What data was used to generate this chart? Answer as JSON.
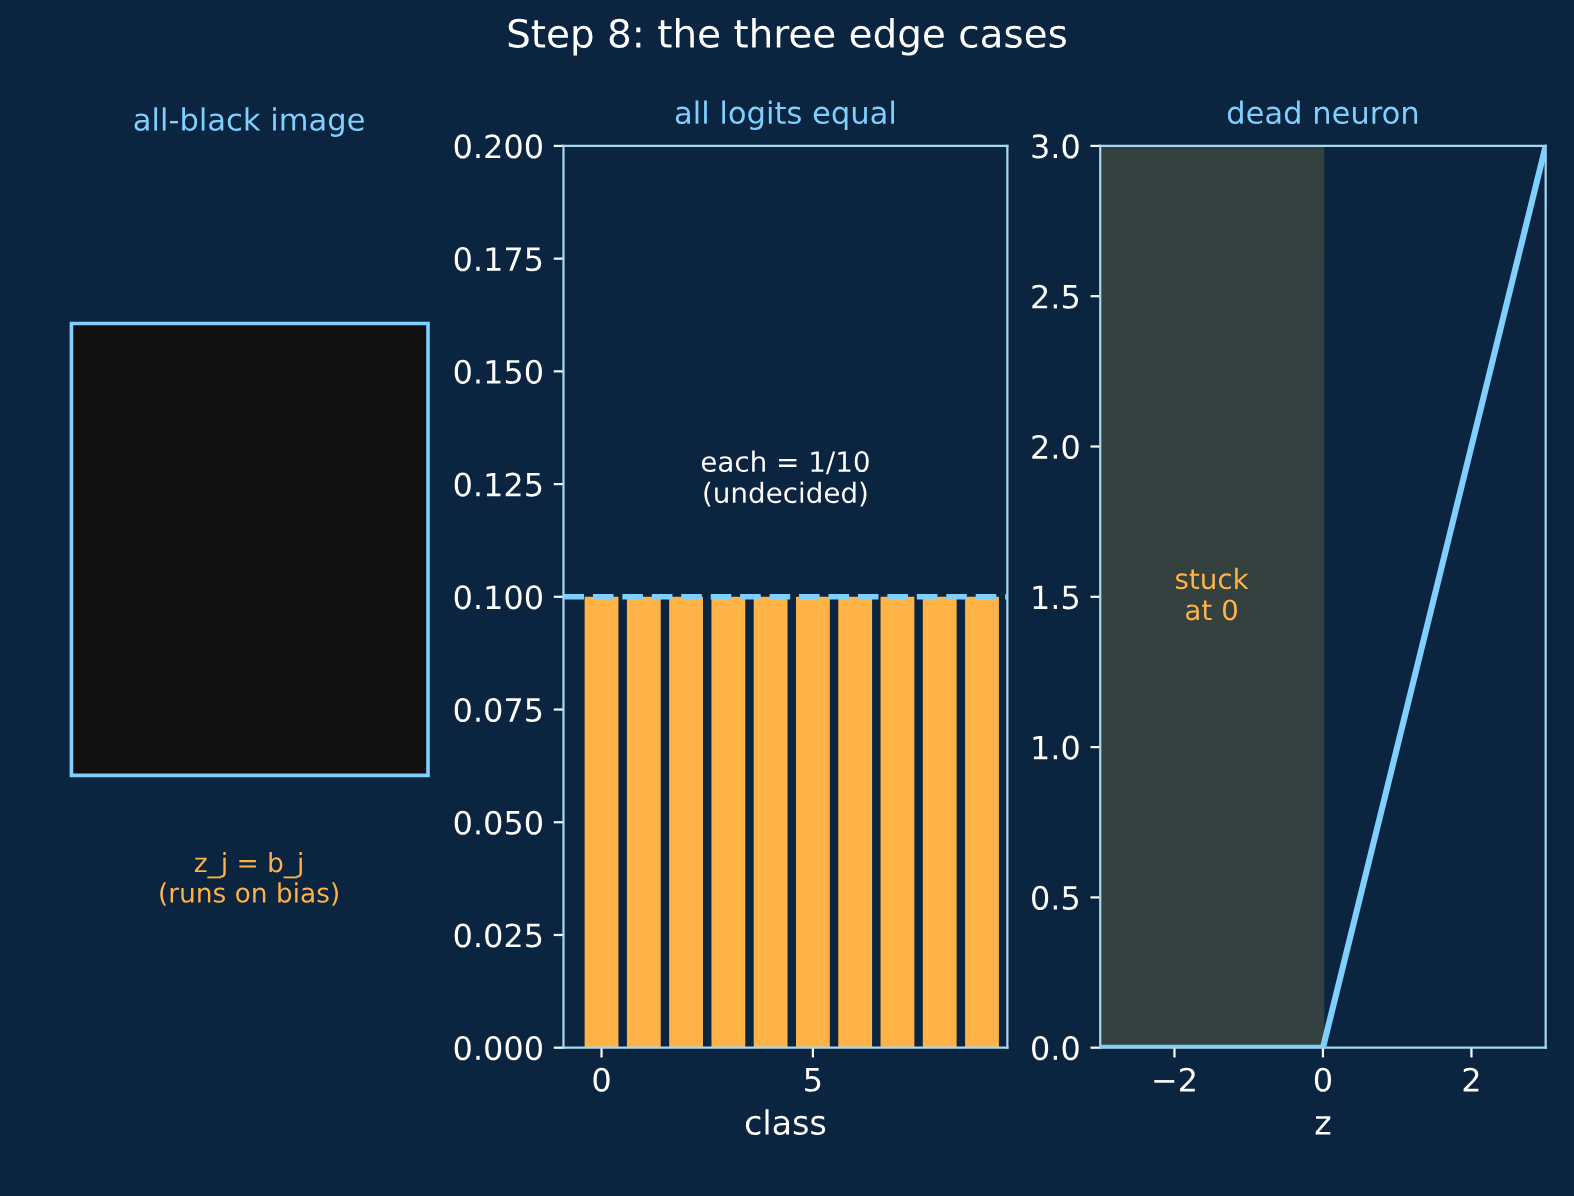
{
  "chart_data": [
    {
      "type": "other",
      "title": "Step 8: the three edge cases",
      "subtitle": "all-black image",
      "annotations": [
        "z_j = b_j\n(runs on bias)"
      ]
    },
    {
      "type": "bar",
      "subtitle": "all logits equal",
      "xlabel": "class",
      "x": [
        0,
        1,
        2,
        3,
        4,
        5,
        6,
        7,
        8,
        9
      ],
      "values": [
        0.1,
        0.1,
        0.1,
        0.1,
        0.1,
        0.1,
        0.1,
        0.1,
        0.1,
        0.1
      ],
      "color": "#ffb347",
      "xlim": [
        -0.9,
        9.6
      ],
      "xticks": [
        0,
        5
      ],
      "ylim": [
        0,
        0.2
      ],
      "yticks": [
        {
          "value": 0,
          "label": "0.000"
        },
        0.025,
        {
          "value": 0.05,
          "label": "0.050"
        },
        0.075,
        {
          "value": 0.1,
          "label": "0.100"
        },
        0.125,
        {
          "value": 0.15,
          "label": "0.150"
        },
        0.175,
        {
          "value": 0.2,
          "label": "0.200"
        }
      ],
      "ref_lines": [
        {
          "axis": "y",
          "value": 0.1,
          "color": "#7fd0ff",
          "line_style": "dashed"
        }
      ],
      "annotations": [
        "each = 1/10\n(undecided)"
      ],
      "grid": false
    },
    {
      "type": "line",
      "subtitle": "dead neuron",
      "xlabel": "z",
      "x": [
        -3,
        0,
        3
      ],
      "values": [
        0,
        0,
        3
      ],
      "color": "#7fd0ff",
      "xlim": [
        -3,
        3
      ],
      "xticks": [
        {
          "value": -2,
          "label": "−2"
        },
        0,
        2
      ],
      "ylim": [
        0,
        3
      ],
      "yticks": [
        {
          "value": 0,
          "label": "0.0"
        },
        0.5,
        {
          "value": 1,
          "label": "1.0"
        },
        1.5,
        {
          "value": 2,
          "label": "2.0"
        },
        2.5,
        {
          "value": 3,
          "label": "3.0"
        }
      ],
      "bands": [
        {
          "axis": "x",
          "from": -3,
          "to": 0,
          "label": "stuck\nat 0",
          "color": "#3a4540"
        }
      ],
      "grid": false,
      "marker": "none",
      "line_style": "solid"
    }
  ]
}
